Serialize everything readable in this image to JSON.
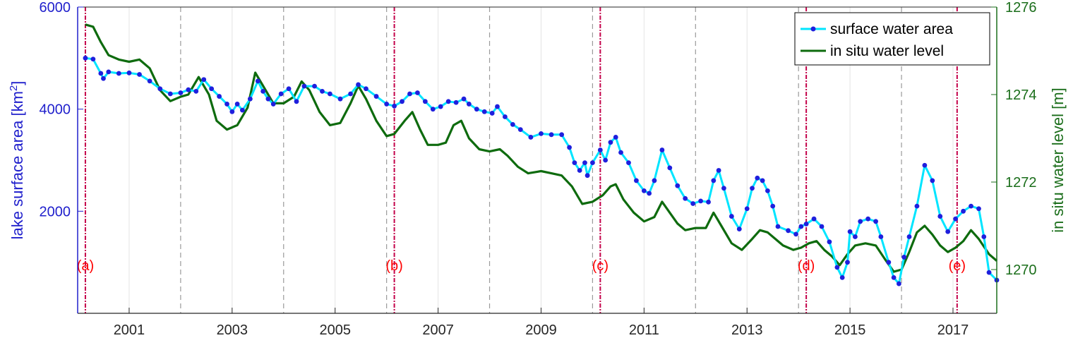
{
  "chart_data": {
    "type": "line",
    "xlim": [
      2000.0,
      2017.85
    ],
    "x_ticks": [
      2001,
      2003,
      2005,
      2007,
      2009,
      2011,
      2013,
      2015,
      2017
    ],
    "x_tick_labels": [
      "2001",
      "2003",
      "2005",
      "2007",
      "2009",
      "2011",
      "2013",
      "2015",
      "2017"
    ],
    "y_left": {
      "label": "lake surface area [km",
      "label_sup": "2",
      "label_end": "]",
      "lim": [
        0,
        6000
      ],
      "ticks": [
        2000,
        4000,
        6000
      ],
      "tick_labels": [
        "2000",
        "4000",
        "6000"
      ],
      "color": "#1f1fcc"
    },
    "y_right": {
      "label": "in situ water level [m]",
      "lim": [
        1269,
        1276
      ],
      "ticks": [
        1270,
        1272,
        1274,
        1276
      ],
      "tick_labels": [
        "1270",
        "1272",
        "1274",
        "1276"
      ],
      "color": "#1b6e1b"
    },
    "grid": "x",
    "legend": {
      "placement": "top-right",
      "entries": [
        "surface water area",
        "in situ water level"
      ]
    },
    "dashed_year_lines": [
      2002,
      2004,
      2006,
      2008,
      2010,
      2012,
      2014,
      2016
    ],
    "event_lines": [
      {
        "x": 2000.15,
        "label": "(a)"
      },
      {
        "x": 2006.15,
        "label": "(b)"
      },
      {
        "x": 2010.15,
        "label": "(c)"
      },
      {
        "x": 2014.15,
        "label": "(d)"
      },
      {
        "x": 2017.08,
        "label": "(e)"
      }
    ],
    "series": [
      {
        "name": "surface water area",
        "axis": "left",
        "color": "#00e5ff",
        "marker_color": "#1f1fdd",
        "points": [
          [
            2000.15,
            5000
          ],
          [
            2000.3,
            4980
          ],
          [
            2000.45,
            4700
          ],
          [
            2000.5,
            4600
          ],
          [
            2000.6,
            4730
          ],
          [
            2000.8,
            4700
          ],
          [
            2001.0,
            4710
          ],
          [
            2001.2,
            4680
          ],
          [
            2001.4,
            4550
          ],
          [
            2001.6,
            4400
          ],
          [
            2001.8,
            4300
          ],
          [
            2002.0,
            4320
          ],
          [
            2002.15,
            4380
          ],
          [
            2002.3,
            4350
          ],
          [
            2002.45,
            4580
          ],
          [
            2002.6,
            4400
          ],
          [
            2002.75,
            4250
          ],
          [
            2002.9,
            4100
          ],
          [
            2003.0,
            3950
          ],
          [
            2003.1,
            4100
          ],
          [
            2003.2,
            3980
          ],
          [
            2003.35,
            4200
          ],
          [
            2003.5,
            4550
          ],
          [
            2003.6,
            4350
          ],
          [
            2003.7,
            4200
          ],
          [
            2003.8,
            4100
          ],
          [
            2003.95,
            4300
          ],
          [
            2004.1,
            4400
          ],
          [
            2004.25,
            4150
          ],
          [
            2004.4,
            4450
          ],
          [
            2004.6,
            4450
          ],
          [
            2004.75,
            4350
          ],
          [
            2004.9,
            4300
          ],
          [
            2005.1,
            4200
          ],
          [
            2005.3,
            4300
          ],
          [
            2005.45,
            4480
          ],
          [
            2005.6,
            4400
          ],
          [
            2005.8,
            4250
          ],
          [
            2006.0,
            4100
          ],
          [
            2006.15,
            4060
          ],
          [
            2006.3,
            4150
          ],
          [
            2006.45,
            4300
          ],
          [
            2006.6,
            4320
          ],
          [
            2006.75,
            4150
          ],
          [
            2006.9,
            4000
          ],
          [
            2007.05,
            4050
          ],
          [
            2007.2,
            4150
          ],
          [
            2007.35,
            4130
          ],
          [
            2007.5,
            4200
          ],
          [
            2007.6,
            4100
          ],
          [
            2007.75,
            4000
          ],
          [
            2007.9,
            3950
          ],
          [
            2008.05,
            3920
          ],
          [
            2008.15,
            4050
          ],
          [
            2008.3,
            3850
          ],
          [
            2008.45,
            3700
          ],
          [
            2008.6,
            3600
          ],
          [
            2008.8,
            3450
          ],
          [
            2009.0,
            3520
          ],
          [
            2009.2,
            3500
          ],
          [
            2009.4,
            3500
          ],
          [
            2009.55,
            3250
          ],
          [
            2009.65,
            2950
          ],
          [
            2009.75,
            2800
          ],
          [
            2009.85,
            2950
          ],
          [
            2009.9,
            2700
          ],
          [
            2010.0,
            2950
          ],
          [
            2010.15,
            3200
          ],
          [
            2010.25,
            3000
          ],
          [
            2010.35,
            3350
          ],
          [
            2010.45,
            3450
          ],
          [
            2010.55,
            3150
          ],
          [
            2010.7,
            2950
          ],
          [
            2010.85,
            2600
          ],
          [
            2011.0,
            2400
          ],
          [
            2011.1,
            2350
          ],
          [
            2011.2,
            2600
          ],
          [
            2011.35,
            3200
          ],
          [
            2011.5,
            2850
          ],
          [
            2011.65,
            2500
          ],
          [
            2011.8,
            2250
          ],
          [
            2011.95,
            2150
          ],
          [
            2012.1,
            2200
          ],
          [
            2012.25,
            2180
          ],
          [
            2012.35,
            2600
          ],
          [
            2012.45,
            2800
          ],
          [
            2012.55,
            2450
          ],
          [
            2012.7,
            1900
          ],
          [
            2012.85,
            1650
          ],
          [
            2013.0,
            2050
          ],
          [
            2013.1,
            2450
          ],
          [
            2013.2,
            2650
          ],
          [
            2013.3,
            2600
          ],
          [
            2013.4,
            2400
          ],
          [
            2013.5,
            2100
          ],
          [
            2013.6,
            1700
          ],
          [
            2013.8,
            1620
          ],
          [
            2013.95,
            1550
          ],
          [
            2014.05,
            1700
          ],
          [
            2014.15,
            1750
          ],
          [
            2014.3,
            1850
          ],
          [
            2014.45,
            1700
          ],
          [
            2014.6,
            1400
          ],
          [
            2014.75,
            900
          ],
          [
            2014.85,
            700
          ],
          [
            2014.95,
            1000
          ],
          [
            2015.0,
            1600
          ],
          [
            2015.1,
            1500
          ],
          [
            2015.2,
            1800
          ],
          [
            2015.35,
            1850
          ],
          [
            2015.5,
            1800
          ],
          [
            2015.6,
            1500
          ],
          [
            2015.75,
            1000
          ],
          [
            2015.85,
            700
          ],
          [
            2015.95,
            580
          ],
          [
            2016.05,
            1100
          ],
          [
            2016.15,
            1500
          ],
          [
            2016.3,
            2100
          ],
          [
            2016.45,
            2900
          ],
          [
            2016.6,
            2600
          ],
          [
            2016.75,
            1900
          ],
          [
            2016.9,
            1600
          ],
          [
            2017.05,
            1850
          ],
          [
            2017.2,
            2000
          ],
          [
            2017.35,
            2100
          ],
          [
            2017.5,
            2050
          ],
          [
            2017.6,
            1500
          ],
          [
            2017.7,
            800
          ],
          [
            2017.85,
            650
          ]
        ]
      },
      {
        "name": "in situ water level",
        "axis": "right",
        "color": "#0e6b0e",
        "points": [
          [
            2000.15,
            1275.6
          ],
          [
            2000.3,
            1275.55
          ],
          [
            2000.45,
            1275.2
          ],
          [
            2000.6,
            1274.9
          ],
          [
            2000.8,
            1274.8
          ],
          [
            2001.0,
            1274.75
          ],
          [
            2001.2,
            1274.8
          ],
          [
            2001.4,
            1274.6
          ],
          [
            2001.6,
            1274.1
          ],
          [
            2001.8,
            1273.85
          ],
          [
            2002.0,
            1273.95
          ],
          [
            2002.15,
            1274.0
          ],
          [
            2002.35,
            1274.4
          ],
          [
            2002.55,
            1274.0
          ],
          [
            2002.7,
            1273.4
          ],
          [
            2002.9,
            1273.2
          ],
          [
            2003.1,
            1273.3
          ],
          [
            2003.3,
            1273.7
          ],
          [
            2003.45,
            1274.5
          ],
          [
            2003.6,
            1274.2
          ],
          [
            2003.8,
            1273.8
          ],
          [
            2004.0,
            1273.8
          ],
          [
            2004.2,
            1273.95
          ],
          [
            2004.35,
            1274.3
          ],
          [
            2004.5,
            1274.1
          ],
          [
            2004.7,
            1273.6
          ],
          [
            2004.9,
            1273.3
          ],
          [
            2005.1,
            1273.35
          ],
          [
            2005.3,
            1273.8
          ],
          [
            2005.45,
            1274.2
          ],
          [
            2005.6,
            1273.9
          ],
          [
            2005.8,
            1273.4
          ],
          [
            2006.0,
            1273.05
          ],
          [
            2006.15,
            1273.1
          ],
          [
            2006.35,
            1273.4
          ],
          [
            2006.5,
            1273.6
          ],
          [
            2006.65,
            1273.2
          ],
          [
            2006.8,
            1272.85
          ],
          [
            2007.0,
            1272.85
          ],
          [
            2007.15,
            1272.9
          ],
          [
            2007.3,
            1273.3
          ],
          [
            2007.45,
            1273.4
          ],
          [
            2007.6,
            1273.0
          ],
          [
            2007.8,
            1272.75
          ],
          [
            2008.0,
            1272.7
          ],
          [
            2008.2,
            1272.75
          ],
          [
            2008.35,
            1272.6
          ],
          [
            2008.55,
            1272.35
          ],
          [
            2008.75,
            1272.2
          ],
          [
            2009.0,
            1272.25
          ],
          [
            2009.2,
            1272.2
          ],
          [
            2009.4,
            1272.15
          ],
          [
            2009.6,
            1271.9
          ],
          [
            2009.8,
            1271.5
          ],
          [
            2010.0,
            1271.55
          ],
          [
            2010.2,
            1271.7
          ],
          [
            2010.35,
            1271.9
          ],
          [
            2010.45,
            1271.95
          ],
          [
            2010.6,
            1271.6
          ],
          [
            2010.8,
            1271.3
          ],
          [
            2011.0,
            1271.1
          ],
          [
            2011.2,
            1271.2
          ],
          [
            2011.35,
            1271.55
          ],
          [
            2011.5,
            1271.3
          ],
          [
            2011.65,
            1271.05
          ],
          [
            2011.8,
            1270.9
          ],
          [
            2012.0,
            1270.95
          ],
          [
            2012.2,
            1270.95
          ],
          [
            2012.35,
            1271.3
          ],
          [
            2012.5,
            1271.0
          ],
          [
            2012.7,
            1270.6
          ],
          [
            2012.9,
            1270.45
          ],
          [
            2013.1,
            1270.7
          ],
          [
            2013.25,
            1270.9
          ],
          [
            2013.4,
            1270.85
          ],
          [
            2013.55,
            1270.7
          ],
          [
            2013.7,
            1270.55
          ],
          [
            2013.9,
            1270.45
          ],
          [
            2014.05,
            1270.5
          ],
          [
            2014.2,
            1270.6
          ],
          [
            2014.35,
            1270.65
          ],
          [
            2014.5,
            1270.45
          ],
          [
            2014.65,
            1270.3
          ],
          [
            2014.8,
            1270.1
          ],
          [
            2014.95,
            1270.35
          ],
          [
            2015.1,
            1270.55
          ],
          [
            2015.3,
            1270.6
          ],
          [
            2015.5,
            1270.55
          ],
          [
            2015.7,
            1270.2
          ],
          [
            2015.85,
            1269.95
          ],
          [
            2016.0,
            1270.0
          ],
          [
            2016.15,
            1270.4
          ],
          [
            2016.3,
            1270.85
          ],
          [
            2016.45,
            1271.0
          ],
          [
            2016.6,
            1270.8
          ],
          [
            2016.75,
            1270.55
          ],
          [
            2016.9,
            1270.4
          ],
          [
            2017.05,
            1270.5
          ],
          [
            2017.2,
            1270.65
          ],
          [
            2017.35,
            1270.9
          ],
          [
            2017.5,
            1270.7
          ],
          [
            2017.7,
            1270.35
          ],
          [
            2017.85,
            1270.2
          ]
        ]
      }
    ]
  }
}
